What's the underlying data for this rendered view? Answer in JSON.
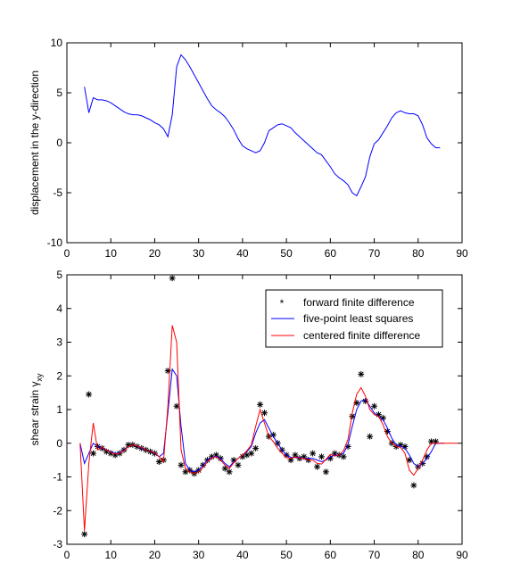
{
  "chart_data": [
    {
      "type": "line",
      "title": "",
      "xlabel": "",
      "ylabel": "displacement in the y-direction",
      "xlim": [
        0,
        90
      ],
      "ylim": [
        -10,
        10
      ],
      "xticks": [
        0,
        10,
        20,
        30,
        40,
        50,
        60,
        70,
        80,
        90
      ],
      "yticks": [
        -10,
        -5,
        0,
        5,
        10
      ],
      "grid": false,
      "series": [
        {
          "color": "#0000ff",
          "x": [
            4,
            5,
            6,
            7,
            8,
            9,
            10,
            11,
            12,
            13,
            14,
            15,
            16,
            17,
            18,
            19,
            20,
            21,
            22,
            23,
            24,
            25,
            26,
            27,
            28,
            29,
            30,
            31,
            32,
            33,
            34,
            35,
            36,
            37,
            38,
            39,
            40,
            41,
            42,
            43,
            44,
            45,
            46,
            47,
            48,
            49,
            50,
            51,
            52,
            53,
            54,
            55,
            56,
            57,
            58,
            59,
            60,
            61,
            62,
            63,
            64,
            65,
            66,
            67,
            68,
            69,
            70,
            71,
            72,
            73,
            74,
            75,
            76,
            77,
            78,
            79,
            80,
            81,
            82,
            83,
            84,
            85
          ],
          "y": [
            5.6,
            3.0,
            4.5,
            4.3,
            4.3,
            4.2,
            4.0,
            3.7,
            3.4,
            3.1,
            2.9,
            2.8,
            2.8,
            2.7,
            2.5,
            2.3,
            2.0,
            1.8,
            1.4,
            0.6,
            2.8,
            7.6,
            8.8,
            8.3,
            7.6,
            6.8,
            6.0,
            5.2,
            4.4,
            3.7,
            3.3,
            3.0,
            2.6,
            2.0,
            1.3,
            0.4,
            -0.3,
            -0.6,
            -0.8,
            -1.0,
            -0.8,
            0.0,
            1.2,
            1.5,
            1.8,
            1.9,
            1.7,
            1.5,
            1.0,
            0.6,
            0.2,
            -0.2,
            -0.6,
            -1.0,
            -1.2,
            -1.8,
            -2.4,
            -3.1,
            -3.5,
            -3.8,
            -4.2,
            -5.0,
            -5.3,
            -4.4,
            -3.4,
            -1.4,
            -0.1,
            0.3,
            1.0,
            1.7,
            2.5,
            3.0,
            3.2,
            3.0,
            2.9,
            2.9,
            2.7,
            1.8,
            0.5,
            -0.1,
            -0.5,
            -0.5
          ]
        }
      ]
    },
    {
      "type": "line",
      "title": "",
      "xlabel": "",
      "ylabel": "shear strain γ",
      "ylabel_sub": "xy",
      "xlim": [
        0,
        90
      ],
      "ylim": [
        -3,
        5
      ],
      "xticks": [
        0,
        10,
        20,
        30,
        40,
        50,
        60,
        70,
        80,
        90
      ],
      "yticks": [
        -3,
        -2,
        -1,
        0,
        1,
        2,
        3,
        4,
        5
      ],
      "grid": false,
      "legend": {
        "position": "top-right",
        "entries": [
          "forward finite difference",
          "five-point least squares",
          "centered finite difference"
        ]
      },
      "series": [
        {
          "name": "forward finite difference",
          "style": "markers",
          "marker": "*",
          "color": "#000000",
          "x": [
            4,
            5,
            6,
            7,
            8,
            9,
            10,
            11,
            12,
            13,
            14,
            15,
            16,
            17,
            18,
            19,
            20,
            21,
            22,
            23,
            24,
            25,
            26,
            27,
            28,
            29,
            30,
            31,
            32,
            33,
            34,
            35,
            36,
            37,
            38,
            39,
            40,
            41,
            42,
            43,
            44,
            45,
            46,
            47,
            48,
            49,
            50,
            51,
            52,
            53,
            54,
            55,
            56,
            57,
            58,
            59,
            60,
            61,
            62,
            63,
            64,
            65,
            66,
            67,
            68,
            69,
            70,
            71,
            72,
            73,
            74,
            75,
            76,
            77,
            78,
            79,
            80,
            81,
            82,
            83,
            84
          ],
          "y": [
            -2.7,
            1.45,
            -0.3,
            -0.1,
            -0.15,
            -0.25,
            -0.3,
            -0.35,
            -0.3,
            -0.2,
            -0.05,
            -0.05,
            -0.1,
            -0.15,
            -0.2,
            -0.25,
            -0.3,
            -0.55,
            -0.5,
            2.15,
            4.9,
            1.1,
            -0.65,
            -0.85,
            -0.8,
            -0.9,
            -0.8,
            -0.65,
            -0.5,
            -0.4,
            -0.35,
            -0.45,
            -0.75,
            -0.85,
            -0.5,
            -0.65,
            -0.4,
            -0.35,
            -0.3,
            -0.15,
            1.15,
            0.9,
            0.2,
            0.25,
            0.0,
            -0.2,
            -0.35,
            -0.5,
            -0.35,
            -0.45,
            -0.4,
            -0.5,
            -0.3,
            -0.7,
            -0.4,
            -0.85,
            -0.45,
            -0.3,
            -0.35,
            -0.4,
            -0.1,
            0.8,
            1.2,
            2.05,
            1.25,
            0.2,
            1.1,
            0.85,
            0.75,
            0.35,
            0.0,
            -0.1,
            -0.05,
            -0.1,
            -0.5,
            -1.25,
            -0.7,
            -0.6,
            -0.4,
            0.05,
            0.05
          ]
        },
        {
          "name": "five-point least squares",
          "style": "line",
          "color": "#0000ff",
          "x": [
            3,
            4,
            5,
            6,
            7,
            8,
            9,
            10,
            11,
            12,
            13,
            14,
            15,
            16,
            17,
            18,
            19,
            20,
            21,
            22,
            23,
            24,
            25,
            26,
            27,
            28,
            29,
            30,
            31,
            32,
            33,
            34,
            35,
            36,
            37,
            38,
            39,
            40,
            41,
            42,
            43,
            44,
            45,
            46,
            47,
            48,
            49,
            50,
            51,
            52,
            53,
            54,
            55,
            56,
            57,
            58,
            59,
            60,
            61,
            62,
            63,
            64,
            65,
            66,
            67,
            68,
            69,
            70,
            71,
            72,
            73,
            74,
            75,
            76,
            77,
            78,
            79,
            80,
            81,
            82,
            83,
            84,
            85,
            86
          ],
          "y": [
            0.0,
            -0.6,
            -0.3,
            0.0,
            -0.1,
            -0.15,
            -0.2,
            -0.25,
            -0.3,
            -0.28,
            -0.2,
            -0.1,
            -0.05,
            -0.08,
            -0.15,
            -0.2,
            -0.25,
            -0.3,
            -0.4,
            -0.3,
            0.9,
            2.2,
            2.0,
            0.5,
            -0.6,
            -0.8,
            -0.85,
            -0.8,
            -0.65,
            -0.5,
            -0.42,
            -0.38,
            -0.45,
            -0.6,
            -0.7,
            -0.55,
            -0.45,
            -0.35,
            -0.25,
            -0.1,
            0.3,
            0.6,
            0.7,
            0.45,
            0.2,
            0.0,
            -0.2,
            -0.35,
            -0.42,
            -0.42,
            -0.42,
            -0.45,
            -0.45,
            -0.45,
            -0.5,
            -0.55,
            -0.5,
            -0.4,
            -0.35,
            -0.35,
            -0.3,
            -0.05,
            0.5,
            1.0,
            1.25,
            1.3,
            1.1,
            0.9,
            0.8,
            0.7,
            0.45,
            0.15,
            -0.05,
            -0.08,
            -0.15,
            -0.35,
            -0.6,
            -0.7,
            -0.6,
            -0.45,
            -0.25,
            0.0,
            0.0,
            0.0
          ]
        },
        {
          "name": "centered finite difference",
          "style": "line",
          "color": "#ff0000",
          "x": [
            3,
            4,
            5,
            6,
            7,
            8,
            9,
            10,
            11,
            12,
            13,
            14,
            15,
            16,
            17,
            18,
            19,
            20,
            21,
            22,
            23,
            24,
            25,
            26,
            27,
            28,
            29,
            30,
            31,
            32,
            33,
            34,
            35,
            36,
            37,
            38,
            39,
            40,
            41,
            42,
            43,
            44,
            45,
            46,
            47,
            48,
            49,
            50,
            51,
            52,
            53,
            54,
            55,
            56,
            57,
            58,
            59,
            60,
            61,
            62,
            63,
            64,
            65,
            66,
            67,
            68,
            69,
            70,
            71,
            72,
            73,
            74,
            75,
            76,
            77,
            78,
            79,
            80,
            81,
            82,
            83,
            84,
            85,
            86,
            87,
            88,
            89
          ],
          "y": [
            0.0,
            -2.6,
            -0.6,
            0.6,
            -0.2,
            -0.12,
            -0.2,
            -0.27,
            -0.32,
            -0.3,
            -0.22,
            -0.1,
            -0.05,
            -0.08,
            -0.12,
            -0.2,
            -0.25,
            -0.28,
            -0.4,
            -0.55,
            1.1,
            3.5,
            3.0,
            -0.2,
            -0.75,
            -0.85,
            -0.9,
            -0.85,
            -0.72,
            -0.55,
            -0.43,
            -0.4,
            -0.5,
            -0.65,
            -0.75,
            -0.58,
            -0.45,
            -0.35,
            -0.22,
            -0.05,
            0.5,
            1.0,
            0.6,
            0.2,
            0.05,
            -0.15,
            -0.3,
            -0.43,
            -0.45,
            -0.4,
            -0.45,
            -0.45,
            -0.5,
            -0.5,
            -0.6,
            -0.62,
            -0.48,
            -0.33,
            -0.38,
            -0.35,
            -0.22,
            0.1,
            0.9,
            1.45,
            1.65,
            1.4,
            1.0,
            0.85,
            0.8,
            0.55,
            0.2,
            0.0,
            -0.1,
            -0.12,
            -0.3,
            -0.8,
            -0.95,
            -0.75,
            -0.5,
            -0.2,
            0.0,
            0.0,
            0.0,
            0.0,
            0.0,
            0.0,
            0.0
          ]
        }
      ]
    }
  ]
}
